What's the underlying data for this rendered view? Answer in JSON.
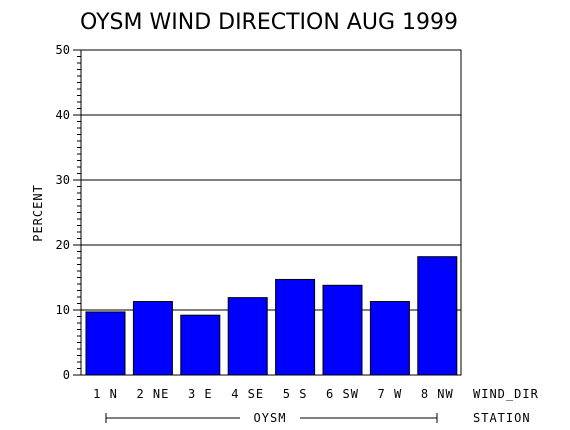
{
  "chart_data": {
    "type": "bar",
    "title": "OYSM WIND DIRECTION AUG 1999",
    "ylabel": "PERCENT",
    "xlabel": "WIND_DIR",
    "group_axis_label": "STATION",
    "group_name": "OYSM",
    "ylim": [
      0,
      50
    ],
    "yticks": [
      0,
      10,
      20,
      30,
      40,
      50
    ],
    "grid": true,
    "bar_color": "#0000ff",
    "categories": [
      "1 N",
      "2 NE",
      "3 E",
      "4 SE",
      "5 S",
      "6 SW",
      "7 W",
      "8 NW"
    ],
    "values": [
      9.7,
      11.3,
      9.2,
      11.9,
      14.7,
      13.8,
      11.3,
      18.2
    ]
  }
}
